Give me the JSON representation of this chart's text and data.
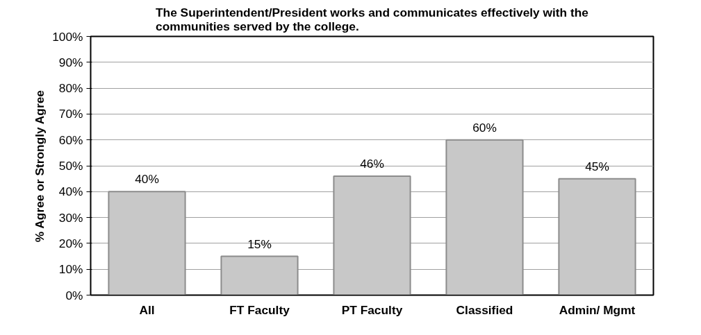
{
  "chart_data": {
    "type": "bar",
    "title": "The Superintendent/President works and communicates effectively with the communities served by the college.",
    "ylabel": "% Agree or Strongly Agree",
    "categories": [
      "All",
      "FT Faculty",
      "PT Faculty",
      "Classified",
      "Admin/ Mgmt"
    ],
    "values": [
      40,
      15,
      46,
      60,
      45
    ],
    "value_labels": [
      "40%",
      "15%",
      "46%",
      "60%",
      "45%"
    ],
    "color": "#c8c8c8",
    "ylim": [
      0,
      100
    ],
    "yticks": [
      {
        "value": 0,
        "label": "0%"
      },
      {
        "value": 10,
        "label": "10%"
      },
      {
        "value": 20,
        "label": "20%"
      },
      {
        "value": 30,
        "label": "30%"
      },
      {
        "value": 40,
        "label": "40%"
      },
      {
        "value": 50,
        "label": "50%"
      },
      {
        "value": 60,
        "label": "60%"
      },
      {
        "value": 70,
        "label": "70%"
      },
      {
        "value": 80,
        "label": "80%"
      },
      {
        "value": 90,
        "label": "90%"
      },
      {
        "value": 100,
        "label": "100%"
      }
    ],
    "grid": "y"
  }
}
